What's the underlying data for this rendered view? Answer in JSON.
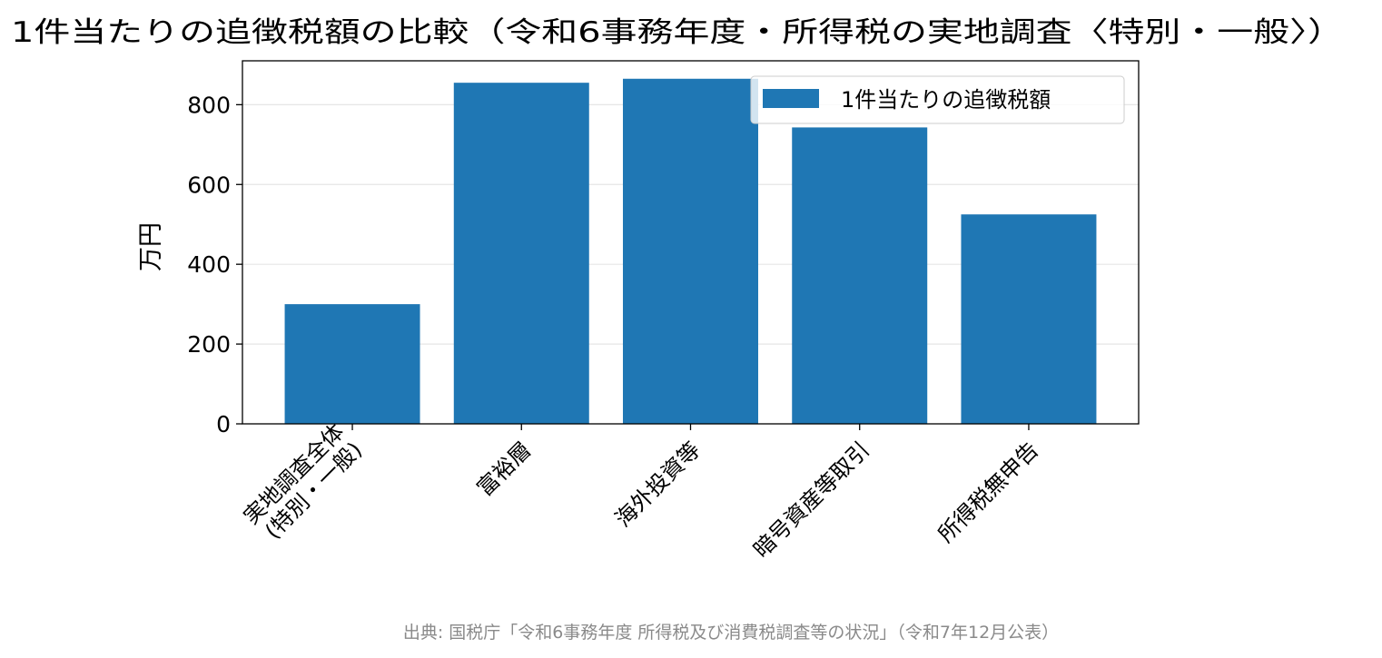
{
  "chart_data": {
    "type": "bar",
    "title": "1件当たりの追徴税額の比較（令和6事務年度・所得税の実地調査〈特別・一般〉）",
    "categories": [
      [
        "実地調査全体",
        "(特別・一般)"
      ],
      [
        "富裕層"
      ],
      [
        "海外投資等"
      ],
      [
        "暗号資産等取引"
      ],
      [
        "所得税無申告"
      ]
    ],
    "series": [
      {
        "name": "1件当たりの追徴税額",
        "values": [
          300,
          855,
          865,
          743,
          525
        ],
        "color": "#1f77b4"
      }
    ],
    "xlabel": "",
    "ylabel": "万円",
    "ylim": [
      0,
      910
    ],
    "yticks": [
      0,
      200,
      400,
      600,
      800
    ],
    "grid": "y",
    "legend": "top-right",
    "source": "出典: 国税庁「令和6事務年度 所得税及び消費税調査等の状況」（令和7年12月公表）"
  }
}
